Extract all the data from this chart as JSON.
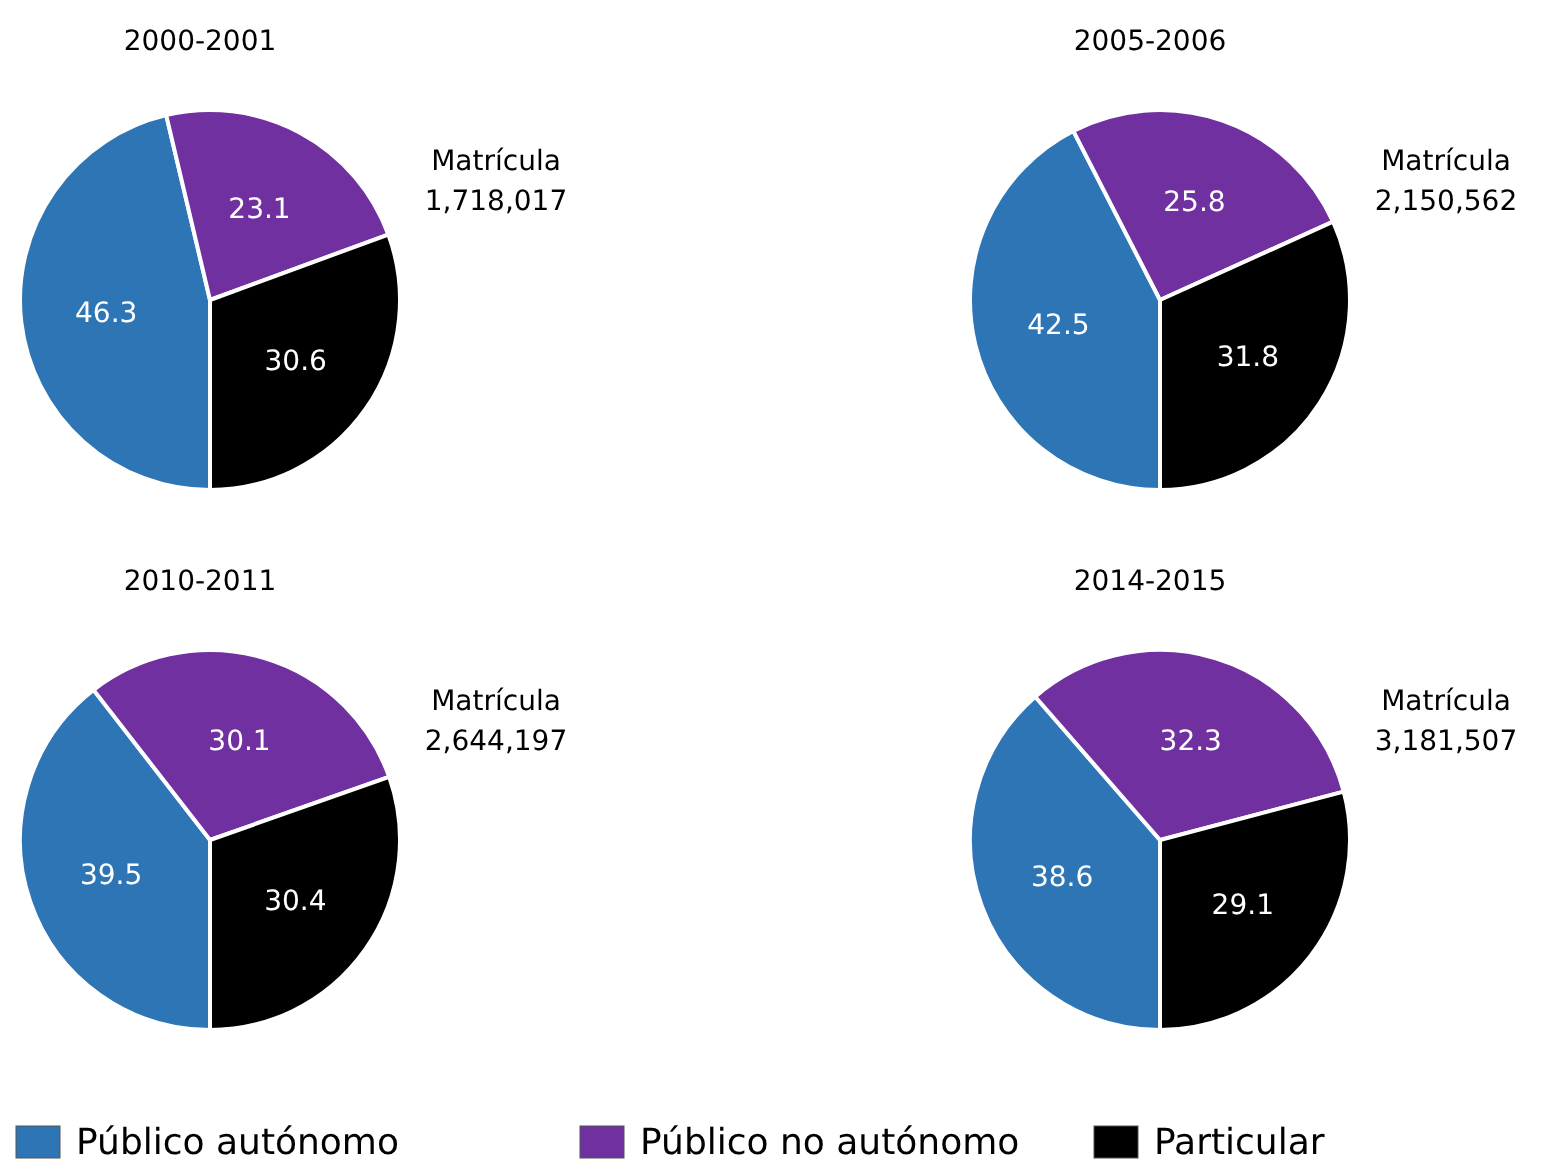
{
  "chart_data": [
    {
      "type": "pie",
      "title": "2000-2001",
      "categories": [
        "Público autónomo",
        "Público no autónomo",
        "Particular"
      ],
      "values": [
        46.3,
        23.1,
        30.6
      ],
      "colors": [
        "#2e75b6",
        "#7030a0",
        "#000000"
      ],
      "data_labels": true,
      "annotations": [
        "Matrícula",
        "1,718,017"
      ],
      "legend": "bottom"
    },
    {
      "type": "pie",
      "title": "2005-2006",
      "categories": [
        null,
        null,
        null
      ],
      "values": [
        42.5,
        25.8,
        31.8
      ],
      "colors": [
        "#2e75b6",
        "#7030a0",
        "#000000"
      ],
      "data_labels": true,
      "annotations": [
        "Matrícula",
        "2,150,562"
      ]
    },
    {
      "type": "pie",
      "title": "2010-2011",
      "categories": [
        null,
        null,
        null
      ],
      "values": [
        39.5,
        30.1,
        30.4
      ],
      "colors": [
        "#2e75b6",
        "#7030a0",
        "#000000"
      ],
      "data_labels": true,
      "annotations": [
        "Matrícula",
        "2,644,197"
      ]
    },
    {
      "type": "pie",
      "title": "2014-2015",
      "categories": [
        null,
        null,
        null
      ],
      "values": [
        38.6,
        32.3,
        29.1
      ],
      "colors": [
        "#2e75b6",
        "#7030a0",
        "#000000"
      ],
      "data_labels": true,
      "annotations": [
        "Matrícula",
        "3,181,507"
      ]
    }
  ]
}
